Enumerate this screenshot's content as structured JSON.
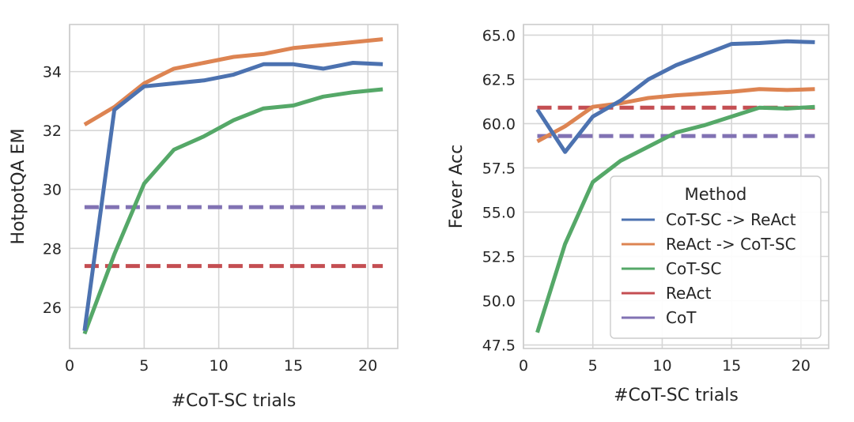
{
  "chart_data": [
    {
      "type": "line",
      "xlabel": "#CoT-SC trials",
      "ylabel": "HotpotQA EM",
      "xlim": [
        0,
        22
      ],
      "ylim": [
        24.6,
        35.6
      ],
      "xticks": [
        0,
        5,
        10,
        15,
        20
      ],
      "yticks": [
        26,
        28,
        30,
        32,
        34
      ],
      "grid": true,
      "series": [
        {
          "name": "CoT-SC -> ReAct",
          "color": "#4c72b0",
          "style": "solid",
          "x": [
            1,
            3,
            5,
            7,
            9,
            11,
            13,
            15,
            17,
            19,
            21
          ],
          "y": [
            25.2,
            32.7,
            33.5,
            33.6,
            33.7,
            33.9,
            34.25,
            34.25,
            34.1,
            34.3,
            34.25
          ]
        },
        {
          "name": "ReAct -> CoT-SC",
          "color": "#dd8452",
          "style": "solid",
          "x": [
            1,
            3,
            5,
            7,
            9,
            11,
            13,
            15,
            17,
            19,
            21
          ],
          "y": [
            32.2,
            32.8,
            33.6,
            34.1,
            34.3,
            34.5,
            34.6,
            34.8,
            34.9,
            35.0,
            35.1
          ]
        },
        {
          "name": "CoT-SC",
          "color": "#55a868",
          "style": "solid",
          "x": [
            1,
            3,
            5,
            7,
            9,
            11,
            13,
            15,
            17,
            19,
            21
          ],
          "y": [
            25.1,
            27.8,
            30.2,
            31.35,
            31.8,
            32.35,
            32.75,
            32.85,
            33.15,
            33.3,
            33.4
          ]
        },
        {
          "name": "ReAct",
          "color": "#c44e52",
          "style": "dashed",
          "x": [
            1,
            21
          ],
          "y": [
            27.4,
            27.4
          ]
        },
        {
          "name": "CoT",
          "color": "#8172b3",
          "style": "dashed",
          "x": [
            1,
            21
          ],
          "y": [
            29.4,
            29.4
          ]
        }
      ]
    },
    {
      "type": "line",
      "xlabel": "#CoT-SC trials",
      "ylabel": "Fever Acc",
      "xlim": [
        0,
        22
      ],
      "ylim": [
        47.3,
        65.6
      ],
      "xticks": [
        0,
        5,
        10,
        15,
        20
      ],
      "yticks": [
        "47.5",
        "50.0",
        "52.5",
        "55.0",
        "57.5",
        "60.0",
        "62.5",
        "65.0"
      ],
      "grid": true,
      "legend": {
        "title": "Method",
        "placement": "lower-right",
        "entries": [
          "CoT-SC -> ReAct",
          "ReAct -> CoT-SC",
          "CoT-SC",
          "ReAct",
          "CoT"
        ]
      },
      "series": [
        {
          "name": "CoT-SC -> ReAct",
          "color": "#4c72b0",
          "style": "solid",
          "x": [
            1,
            3,
            5,
            7,
            9,
            11,
            13,
            15,
            17,
            19,
            21
          ],
          "y": [
            60.8,
            58.4,
            60.4,
            61.3,
            62.5,
            63.3,
            63.9,
            64.5,
            64.55,
            64.65,
            64.6
          ]
        },
        {
          "name": "ReAct -> CoT-SC",
          "color": "#dd8452",
          "style": "solid",
          "x": [
            1,
            3,
            5,
            7,
            9,
            11,
            13,
            15,
            17,
            19,
            21
          ],
          "y": [
            59.0,
            59.85,
            60.95,
            61.15,
            61.45,
            61.6,
            61.7,
            61.8,
            61.95,
            61.9,
            61.95
          ]
        },
        {
          "name": "CoT-SC",
          "color": "#55a868",
          "style": "solid",
          "x": [
            1,
            3,
            5,
            7,
            9,
            11,
            13,
            15,
            17,
            19,
            21
          ],
          "y": [
            48.2,
            53.2,
            56.7,
            57.9,
            58.7,
            59.5,
            59.9,
            60.4,
            60.9,
            60.85,
            60.95
          ]
        },
        {
          "name": "ReAct",
          "color": "#c44e52",
          "style": "dashed",
          "x": [
            1,
            21
          ],
          "y": [
            60.9,
            60.9
          ]
        },
        {
          "name": "CoT",
          "color": "#8172b3",
          "style": "dashed",
          "x": [
            1,
            21
          ],
          "y": [
            59.3,
            59.3
          ]
        }
      ]
    }
  ]
}
